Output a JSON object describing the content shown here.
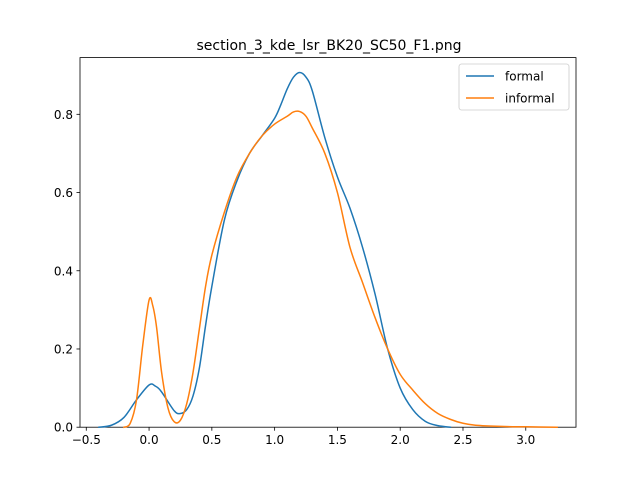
{
  "chart_data": {
    "type": "line",
    "title": "section_3_kde_lsr_BK20_SC50_F1.png",
    "xlabel": "",
    "ylabel": "",
    "xlim": [
      -0.55,
      3.4
    ],
    "ylim": [
      0.0,
      0.945
    ],
    "xticks": [
      -0.5,
      0.0,
      0.5,
      1.0,
      1.5,
      2.0,
      2.5,
      3.0
    ],
    "xtick_labels": [
      "−0.5",
      "0.0",
      "0.5",
      "1.0",
      "1.5",
      "2.0",
      "2.5",
      "3.0"
    ],
    "yticks": [
      0.0,
      0.2,
      0.4,
      0.6,
      0.8
    ],
    "ytick_labels": [
      "0.0",
      "0.2",
      "0.4",
      "0.6",
      "0.8"
    ],
    "grid": false,
    "legend_position": "top-right",
    "series": [
      {
        "name": "formal",
        "color": "#1f77b4",
        "points": [
          [
            -0.4,
            0.0
          ],
          [
            -0.3,
            0.005
          ],
          [
            -0.2,
            0.025
          ],
          [
            -0.1,
            0.07
          ],
          [
            0.0,
            0.108
          ],
          [
            0.05,
            0.105
          ],
          [
            0.1,
            0.09
          ],
          [
            0.2,
            0.042
          ],
          [
            0.25,
            0.035
          ],
          [
            0.3,
            0.045
          ],
          [
            0.35,
            0.08
          ],
          [
            0.4,
            0.15
          ],
          [
            0.45,
            0.26
          ],
          [
            0.5,
            0.36
          ],
          [
            0.6,
            0.53
          ],
          [
            0.7,
            0.63
          ],
          [
            0.8,
            0.7
          ],
          [
            0.9,
            0.745
          ],
          [
            1.0,
            0.79
          ],
          [
            1.05,
            0.825
          ],
          [
            1.1,
            0.865
          ],
          [
            1.15,
            0.895
          ],
          [
            1.2,
            0.907
          ],
          [
            1.25,
            0.895
          ],
          [
            1.3,
            0.86
          ],
          [
            1.4,
            0.74
          ],
          [
            1.5,
            0.64
          ],
          [
            1.6,
            0.56
          ],
          [
            1.7,
            0.46
          ],
          [
            1.8,
            0.34
          ],
          [
            1.9,
            0.2
          ],
          [
            2.0,
            0.1
          ],
          [
            2.1,
            0.045
          ],
          [
            2.2,
            0.015
          ],
          [
            2.3,
            0.004
          ],
          [
            2.4,
            0.0
          ]
        ]
      },
      {
        "name": "informal",
        "color": "#ff7f0e",
        "points": [
          [
            -0.2,
            0.0
          ],
          [
            -0.15,
            0.01
          ],
          [
            -0.1,
            0.07
          ],
          [
            -0.05,
            0.21
          ],
          [
            0.0,
            0.325
          ],
          [
            0.03,
            0.31
          ],
          [
            0.06,
            0.255
          ],
          [
            0.1,
            0.14
          ],
          [
            0.15,
            0.05
          ],
          [
            0.2,
            0.014
          ],
          [
            0.25,
            0.018
          ],
          [
            0.3,
            0.06
          ],
          [
            0.35,
            0.14
          ],
          [
            0.4,
            0.25
          ],
          [
            0.45,
            0.36
          ],
          [
            0.5,
            0.44
          ],
          [
            0.6,
            0.55
          ],
          [
            0.7,
            0.64
          ],
          [
            0.8,
            0.7
          ],
          [
            0.9,
            0.745
          ],
          [
            1.0,
            0.775
          ],
          [
            1.1,
            0.795
          ],
          [
            1.15,
            0.806
          ],
          [
            1.2,
            0.807
          ],
          [
            1.25,
            0.795
          ],
          [
            1.3,
            0.765
          ],
          [
            1.4,
            0.7
          ],
          [
            1.5,
            0.6
          ],
          [
            1.6,
            0.46
          ],
          [
            1.7,
            0.37
          ],
          [
            1.8,
            0.28
          ],
          [
            1.9,
            0.2
          ],
          [
            2.0,
            0.135
          ],
          [
            2.1,
            0.095
          ],
          [
            2.2,
            0.06
          ],
          [
            2.3,
            0.035
          ],
          [
            2.4,
            0.02
          ],
          [
            2.5,
            0.01
          ],
          [
            2.6,
            0.005
          ],
          [
            2.8,
            0.002
          ],
          [
            3.0,
            0.001
          ],
          [
            3.25,
            0.0
          ]
        ]
      }
    ]
  }
}
